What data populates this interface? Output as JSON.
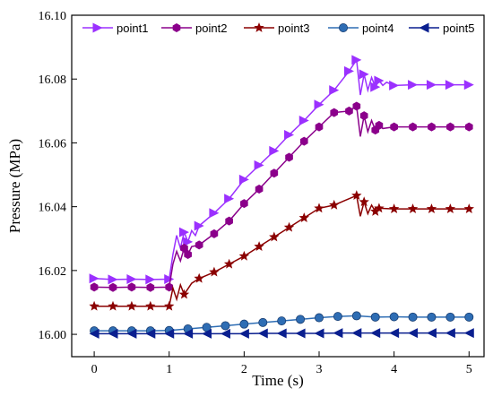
{
  "chart_data": {
    "type": "line",
    "title": "",
    "xlabel": "Time (s)",
    "ylabel": "Pressure (MPa)",
    "xlim": [
      -0.3,
      5.2
    ],
    "ylim": [
      15.993,
      16.1
    ],
    "x_ticks": [
      0,
      1,
      2,
      3,
      4,
      5
    ],
    "x_tick_labels": [
      "0",
      "1",
      "2",
      "3",
      "4",
      "5"
    ],
    "y_ticks": [
      16.0,
      16.02,
      16.04,
      16.06,
      16.08,
      16.1
    ],
    "y_tick_labels": [
      "16.00",
      "16.02",
      "16.04",
      "16.06",
      "16.08",
      "16.10"
    ],
    "grid": false,
    "legend_position": "top",
    "series": [
      {
        "name": "point1",
        "color": "#9b30ff",
        "marker": "triangle-right",
        "x": [
          0,
          0.25,
          0.5,
          0.75,
          1.0,
          1.05,
          1.1,
          1.15,
          1.2,
          1.25,
          1.3,
          1.35,
          1.4,
          1.6,
          1.8,
          2.0,
          2.2,
          2.4,
          2.6,
          2.8,
          3.0,
          3.2,
          3.4,
          3.5,
          3.55,
          3.6,
          3.65,
          3.7,
          3.75,
          3.8,
          3.85,
          3.9,
          4.0,
          4.25,
          4.5,
          4.75,
          5.0
        ],
        "y": [
          16.0175,
          16.0172,
          16.0173,
          16.0172,
          16.0173,
          16.025,
          16.031,
          16.027,
          16.032,
          16.029,
          16.0325,
          16.031,
          16.034,
          16.038,
          16.0425,
          16.0485,
          16.053,
          16.0575,
          16.0625,
          16.067,
          16.072,
          16.0765,
          16.0825,
          16.086,
          16.075,
          16.0815,
          16.0765,
          16.0805,
          16.0775,
          16.0795,
          16.078,
          16.079,
          16.078,
          16.0782,
          16.0782,
          16.0782,
          16.0782
        ]
      },
      {
        "name": "point2",
        "color": "#8b008b",
        "marker": "hexagon",
        "x": [
          0,
          0.25,
          0.5,
          0.75,
          1.0,
          1.05,
          1.1,
          1.15,
          1.2,
          1.25,
          1.3,
          1.4,
          1.6,
          1.8,
          2.0,
          2.2,
          2.4,
          2.6,
          2.8,
          3.0,
          3.2,
          3.4,
          3.5,
          3.55,
          3.6,
          3.65,
          3.7,
          3.75,
          3.8,
          3.85,
          4.0,
          4.25,
          4.5,
          4.75,
          5.0
        ],
        "y": [
          16.0148,
          16.0147,
          16.0148,
          16.0147,
          16.0148,
          16.022,
          16.026,
          16.023,
          16.027,
          16.025,
          16.0275,
          16.028,
          16.0315,
          16.0355,
          16.041,
          16.0455,
          16.0505,
          16.0555,
          16.0605,
          16.065,
          16.0695,
          16.07,
          16.0715,
          16.062,
          16.0685,
          16.0635,
          16.067,
          16.064,
          16.0655,
          16.0645,
          16.065,
          16.065,
          16.065,
          16.065,
          16.065
        ]
      },
      {
        "name": "point3",
        "color": "#8b0000",
        "marker": "star",
        "x": [
          0,
          0.25,
          0.5,
          0.75,
          1.0,
          1.05,
          1.1,
          1.15,
          1.2,
          1.3,
          1.4,
          1.6,
          1.8,
          2.0,
          2.2,
          2.4,
          2.6,
          2.8,
          3.0,
          3.2,
          3.5,
          3.55,
          3.6,
          3.65,
          3.7,
          3.75,
          3.8,
          4.0,
          4.25,
          4.5,
          4.75,
          5.0
        ],
        "y": [
          16.0088,
          16.0088,
          16.0088,
          16.0088,
          16.0088,
          16.0145,
          16.011,
          16.0155,
          16.0125,
          16.016,
          16.0175,
          16.0195,
          16.022,
          16.0245,
          16.0275,
          16.0305,
          16.0335,
          16.0365,
          16.0395,
          16.0405,
          16.0435,
          16.037,
          16.0415,
          16.0378,
          16.0405,
          16.0385,
          16.0395,
          16.0393,
          16.0393,
          16.0393,
          16.0393,
          16.0393
        ]
      },
      {
        "name": "point4",
        "color": "#2e6db4",
        "marker": "circle",
        "x": [
          0,
          0.25,
          0.5,
          0.75,
          1.0,
          1.25,
          1.5,
          1.75,
          2.0,
          2.25,
          2.5,
          2.75,
          3.0,
          3.25,
          3.5,
          3.75,
          4.0,
          4.25,
          4.5,
          4.75,
          5.0
        ],
        "y": [
          16.0011,
          16.0011,
          16.0011,
          16.0011,
          16.0012,
          16.0017,
          16.0022,
          16.0027,
          16.0032,
          16.0037,
          16.0042,
          16.0047,
          16.0052,
          16.0056,
          16.0058,
          16.0054,
          16.0055,
          16.0054,
          16.0054,
          16.0054,
          16.0054
        ]
      },
      {
        "name": "point5",
        "color": "#0a1f8f",
        "marker": "triangle-left",
        "x": [
          0,
          0.25,
          0.5,
          0.75,
          1.0,
          1.25,
          1.5,
          1.75,
          2.0,
          2.25,
          2.5,
          2.75,
          3.0,
          3.25,
          3.5,
          3.75,
          4.0,
          4.25,
          4.5,
          4.75,
          5.0
        ],
        "y": [
          16.0002,
          16.0002,
          16.0002,
          16.0002,
          16.0002,
          16.0002,
          16.0002,
          16.0002,
          16.0002,
          16.0003,
          16.0003,
          16.0003,
          16.0003,
          16.0004,
          16.0004,
          16.0004,
          16.0004,
          16.0004,
          16.0004,
          16.0004,
          16.0004
        ]
      }
    ]
  }
}
